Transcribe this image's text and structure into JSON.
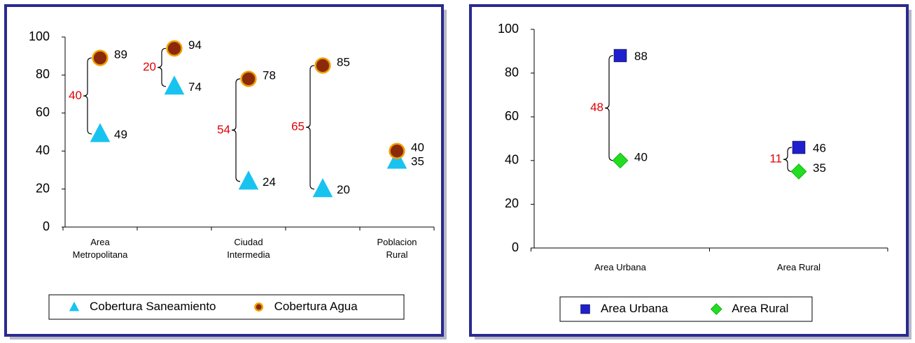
{
  "chart_data": [
    {
      "type": "dot",
      "categories": [
        "Area Metropolitana",
        null,
        "Ciudad Intermedia",
        null,
        "Poblacion Rural"
      ],
      "series": [
        {
          "name": "Cobertura Saneamiento",
          "color": "#19c3f0",
          "marker": "triangle",
          "values": [
            49,
            74,
            24,
            20,
            35
          ]
        },
        {
          "name": "Cobertura Agua",
          "color": "#8b2a0a",
          "edgecolor": "#f0a000",
          "marker": "circle",
          "values": [
            89,
            94,
            78,
            85,
            40
          ]
        }
      ],
      "differences": {
        "color": "#e00000",
        "values": [
          40,
          20,
          54,
          65,
          null
        ]
      },
      "ylim": [
        0,
        100
      ],
      "yticks": [
        0,
        20,
        40,
        60,
        80,
        100
      ]
    },
    {
      "type": "dot",
      "categories": [
        "Area Urbana",
        "Area Rural"
      ],
      "series": [
        {
          "name": "Area Urbana",
          "color": "#1f1fd0",
          "marker": "square",
          "values": [
            88,
            46
          ]
        },
        {
          "name": "Area Rural",
          "color": "#22dd22",
          "marker": "diamond",
          "values": [
            40,
            35
          ]
        }
      ],
      "differences": {
        "color": "#e00000",
        "values": [
          48,
          11
        ]
      },
      "ylim": [
        0,
        100
      ],
      "yticks": [
        0,
        20,
        40,
        60,
        80,
        100
      ]
    }
  ]
}
